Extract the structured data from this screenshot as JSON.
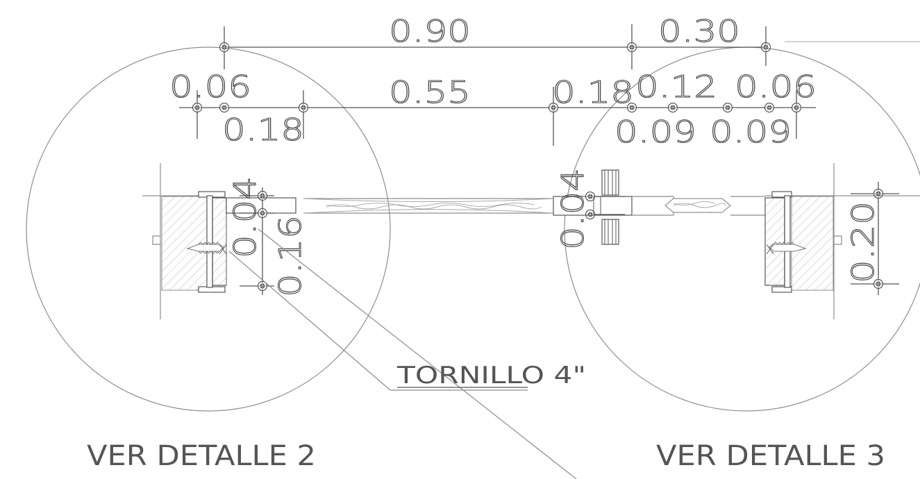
{
  "colors": {
    "line": "#8c8c8c",
    "text": "#555555",
    "hatch": "#b8b8b8"
  },
  "dimensions": {
    "top_left_span": "0.90",
    "top_right_span": "0.30",
    "row2_a": "0.06",
    "row2_b": "0.55",
    "row2_c": "0.18",
    "row2_d": "0.12",
    "row2_e": "0.06",
    "row3_a": "0.18",
    "row3_b": "0.09",
    "row3_c": "0.09",
    "vertical_left_top": "0.04",
    "vertical_left_bottom": "0.16",
    "vertical_center": "0.04",
    "vertical_right": "0.20"
  },
  "labels": {
    "screw": "TORNILLO 4\"",
    "detail_left": "VER DETALLE 2",
    "detail_right": "VER DETALLE 3"
  },
  "icons": {
    "dimension_node": "dimension-node-icon",
    "screw": "screw-icon",
    "hinge": "hinge-icon"
  }
}
